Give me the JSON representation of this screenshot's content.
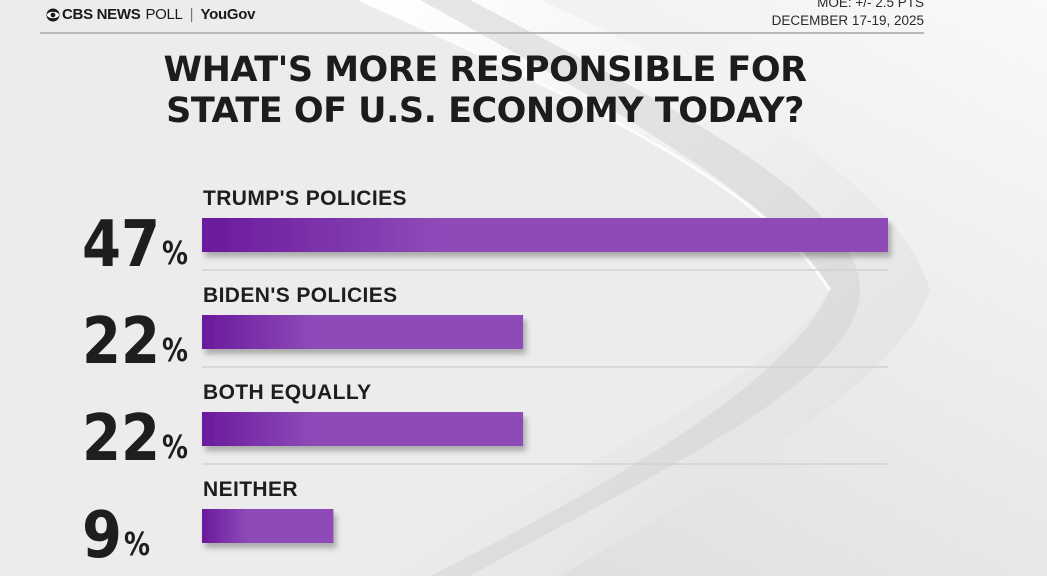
{
  "brand": {
    "network": "CBS NEWS",
    "poll": "POLL",
    "separator": "|",
    "partner": "YouGov"
  },
  "meta": {
    "moe": "MOE: +/- 2.5 PTS",
    "date": "DECEMBER 17-19, 2025"
  },
  "colors": {
    "bar_start": "#6a1a9c",
    "bar_end": "#8e4bb8",
    "text": "#1e1e1e"
  },
  "chart_data": {
    "type": "bar",
    "orientation": "horizontal",
    "title_lines": [
      "WHAT'S MORE RESPONSIBLE FOR",
      "STATE OF U.S. ECONOMY TODAY?"
    ],
    "categories": [
      "TRUMP'S POLICIES",
      "BIDEN'S POLICIES",
      "BOTH EQUALLY",
      "NEITHER"
    ],
    "values": [
      47,
      22,
      22,
      9
    ],
    "value_suffix": "%",
    "xlim": [
      0,
      47
    ],
    "grid": false,
    "legend": "none"
  }
}
